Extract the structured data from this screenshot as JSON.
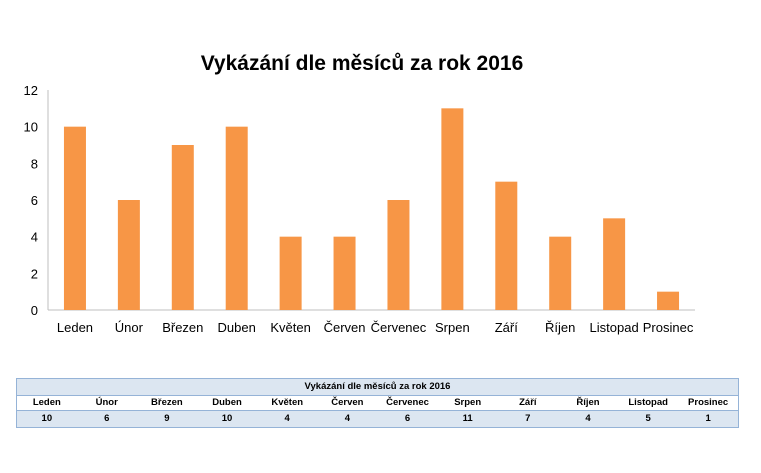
{
  "chart_data": {
    "type": "bar",
    "title": "Vykázání dle měsíců za rok 2016",
    "categories": [
      "Leden",
      "Únor",
      "Březen",
      "Duben",
      "Květen",
      "Červen",
      "Červenec",
      "Srpen",
      "Září",
      "Říjen",
      "Listopad",
      "Prosinec"
    ],
    "values": [
      10,
      6,
      9,
      10,
      4,
      4,
      6,
      11,
      7,
      4,
      5,
      1
    ],
    "ylim": [
      0,
      12
    ],
    "yticks": [
      0,
      2,
      4,
      6,
      8,
      10,
      12
    ],
    "grid": false,
    "legend": "none",
    "bar_color": "#f79646"
  },
  "table": {
    "title": "Vykázání dle měsíců za rok 2016",
    "headers": [
      "Leden",
      "Únor",
      "Březen",
      "Duben",
      "Květen",
      "Červen",
      "Červenec",
      "Srpen",
      "Září",
      "Říjen",
      "Listopad",
      "Prosinec"
    ],
    "values": [
      "10",
      "6",
      "9",
      "10",
      "4",
      "4",
      "6",
      "11",
      "7",
      "4",
      "5",
      "1"
    ],
    "header_fill": "#dce6f1",
    "border_color": "#95b3d7"
  }
}
